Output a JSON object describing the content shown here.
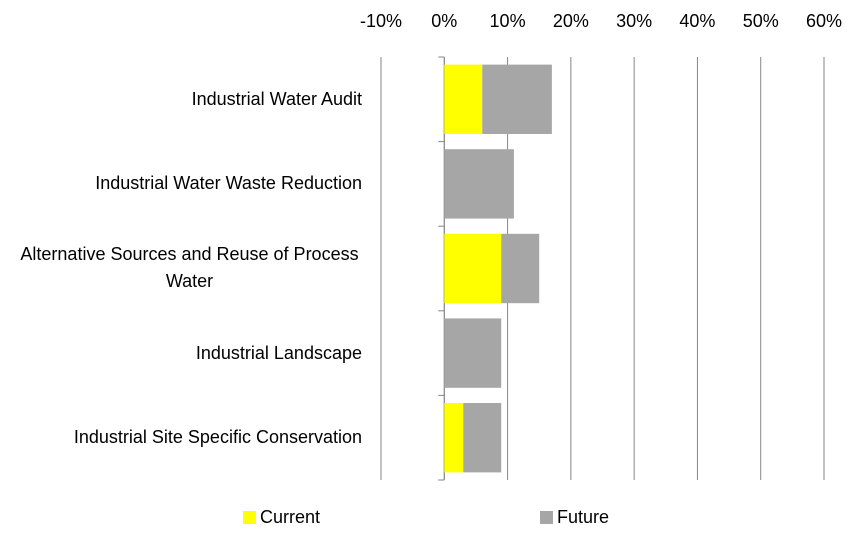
{
  "chart_data": {
    "type": "stacked_bar_horizontal",
    "categories": [
      "Industrial Water Audit",
      "Industrial Water Waste Reduction",
      "Alternative Sources and Reuse of Process Water",
      "Industrial Landscape",
      "Industrial Site Specific Conservation"
    ],
    "series": [
      {
        "name": "Current",
        "color": "#ffff00",
        "values": [
          6,
          0,
          9,
          0,
          3
        ]
      },
      {
        "name": "Future",
        "color": "#a6a6a6",
        "values": [
          11,
          11,
          6,
          9,
          6
        ]
      }
    ],
    "xlim": [
      -10,
      60
    ],
    "xticks": [
      {
        "value": -10,
        "label": "-10%"
      },
      {
        "value": 0,
        "label": "0%"
      },
      {
        "value": 10,
        "label": "10%"
      },
      {
        "value": 20,
        "label": "20%"
      },
      {
        "value": 30,
        "label": "30%"
      },
      {
        "value": 40,
        "label": "40%"
      },
      {
        "value": 50,
        "label": "50%"
      },
      {
        "value": 60,
        "label": "60%"
      }
    ],
    "grid": true,
    "legend": "bottom"
  }
}
